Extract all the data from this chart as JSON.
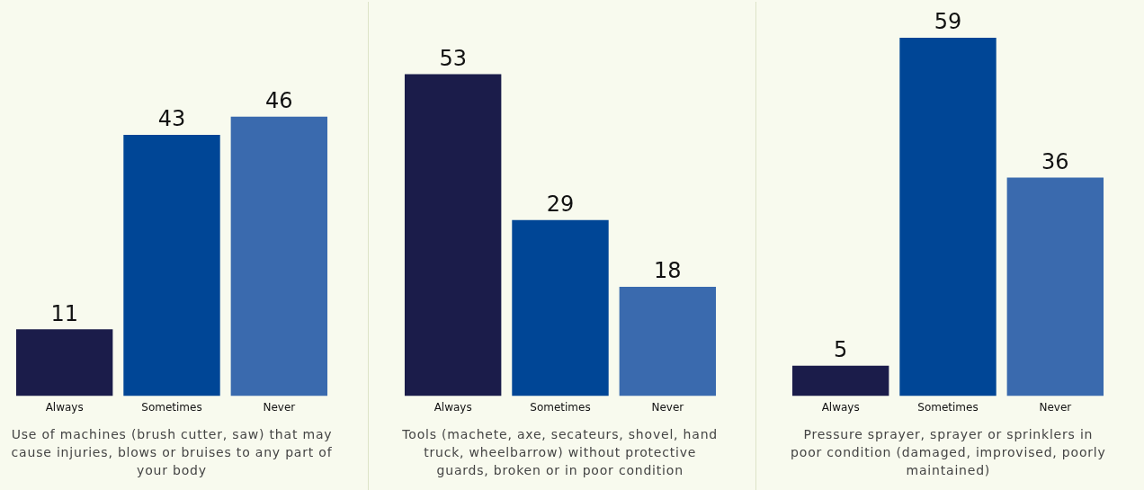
{
  "chart_data": [
    {
      "type": "bar",
      "xlabel": "Use of machines (brush cutter, saw) that may cause injuries, blows or bruises to any part of your body",
      "categories": [
        "Always",
        "Sometimes",
        "Never"
      ],
      "values": [
        11,
        43,
        46
      ],
      "colors": [
        "#1b1c4a",
        "#004696",
        "#3a6aae"
      ],
      "data_labels": true,
      "grid": false,
      "legend": false
    },
    {
      "type": "bar",
      "xlabel": "Tools (machete, axe, secateurs, shovel, hand truck, wheelbarrow) without protective guards, broken or in poor condition",
      "categories": [
        "Always",
        "Sometimes",
        "Never"
      ],
      "values": [
        53,
        29,
        18
      ],
      "colors": [
        "#1b1c4a",
        "#004696",
        "#3a6aae"
      ],
      "data_labels": true,
      "grid": false,
      "legend": false
    },
    {
      "type": "bar",
      "xlabel": "Pressure sprayer, sprayer or sprinklers in poor condition (damaged, improvised, poorly maintained)",
      "categories": [
        "Always",
        "Sometimes",
        "Never"
      ],
      "values": [
        5,
        59,
        36
      ],
      "colors": [
        "#1b1c4a",
        "#004696",
        "#3a6aae"
      ],
      "data_labels": true,
      "grid": false,
      "legend": false
    }
  ]
}
